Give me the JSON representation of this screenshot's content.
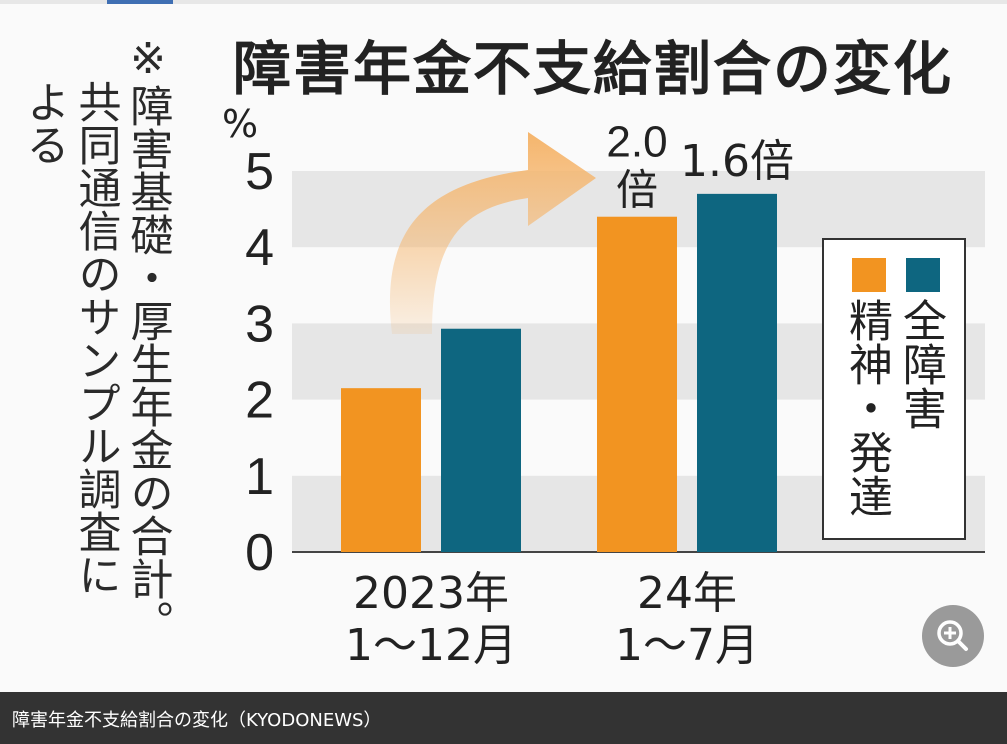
{
  "note_lines": [
    "※障害基礎・厚生年金の合計。",
    "共同通信のサンプル調査に",
    "よる"
  ],
  "chart_data": {
    "type": "bar",
    "title": "障害年金不支給割合の変化",
    "ylabel": "%",
    "ylim": [
      0,
      5
    ],
    "yticks": [
      "0",
      "1",
      "2",
      "3",
      "4",
      "5"
    ],
    "categories": [
      {
        "line1": "2023年",
        "line2": "1〜12月"
      },
      {
        "line1": "24年",
        "line2": "1〜7月"
      }
    ],
    "series": [
      {
        "name": "精神・発達",
        "color": "#f29421",
        "values": [
          2.15,
          4.4
        ]
      },
      {
        "name": "全障害",
        "color": "#0e6680",
        "values": [
          2.93,
          4.7
        ]
      }
    ],
    "annotations": [
      {
        "series": 0,
        "category": 1,
        "line1": "2.0",
        "line2": "倍"
      },
      {
        "series": 1,
        "category": 1,
        "line1": "1.6倍",
        "line2": ""
      }
    ],
    "grid": "alternating bands",
    "legend_position": "right"
  },
  "caption": "障害年金不支給割合の変化（KYODONEWS）",
  "zoom_icon": "zoom-in-icon",
  "colors": {
    "caption_bg": "#333333",
    "band": "#e6e6e6",
    "arrow": "#f5b56c"
  }
}
